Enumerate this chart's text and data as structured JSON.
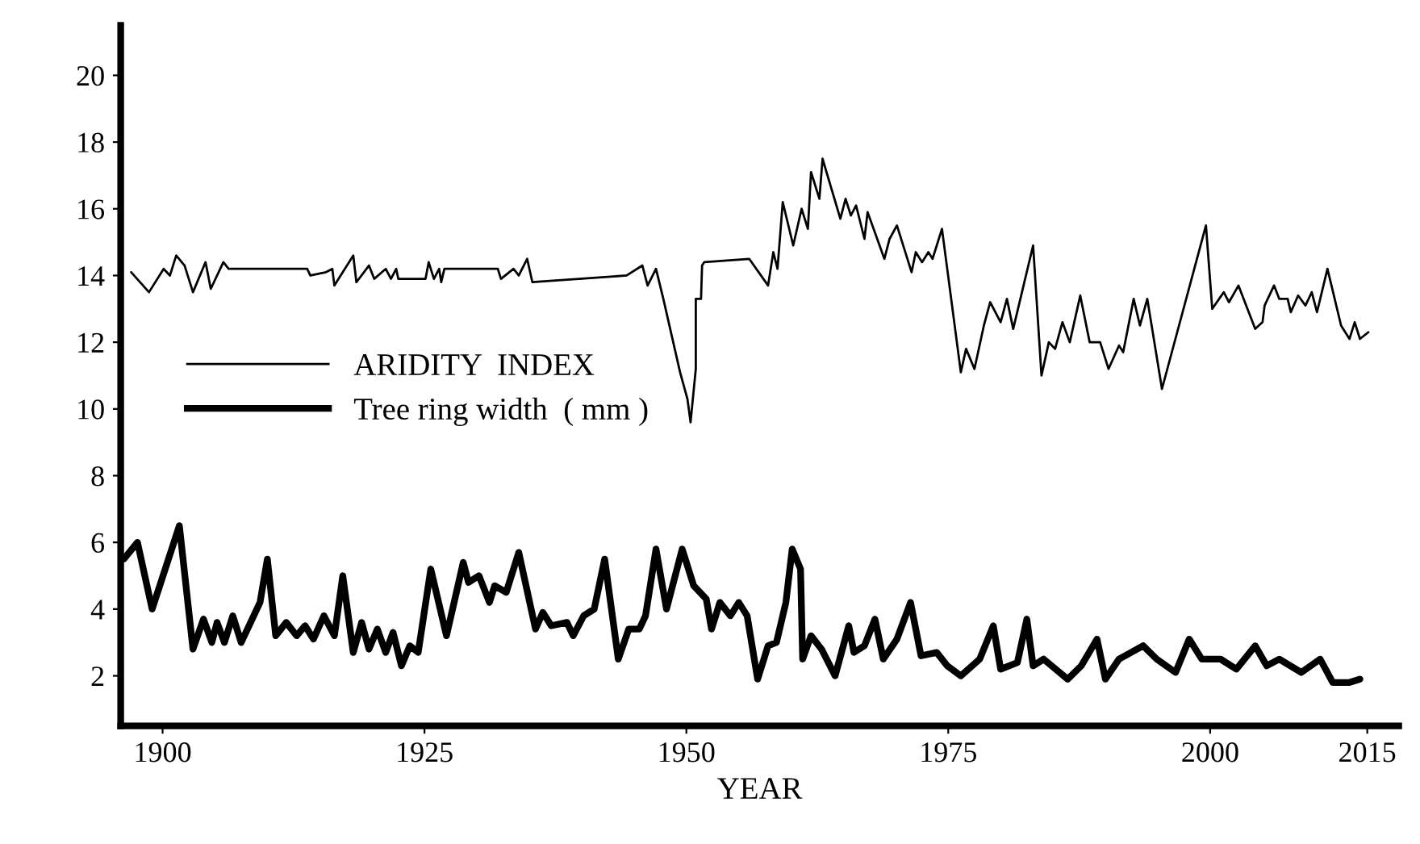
{
  "chart_data": {
    "type": "line",
    "xlabel": "YEAR",
    "xlim": [
      1896,
      2018
    ],
    "xticks": [
      1900,
      1925,
      1950,
      1975,
      2000,
      2015
    ],
    "ylim": [
      0.5,
      21.5
    ],
    "yticks": [
      2,
      4,
      6,
      8,
      10,
      12,
      14,
      16,
      18,
      20
    ],
    "grid": false,
    "legend": "left",
    "marker": "none",
    "line_style": "solid",
    "series": [
      {
        "name": "ARIDITY  INDEX",
        "color": "#000000",
        "x": [
          1897.0,
          1898.7,
          1900.1,
          1900.7,
          1901.3,
          1902.1,
          1902.9,
          1904.1,
          1904.6,
          1905.8,
          1906.3,
          1913.8,
          1914.1,
          1915.6,
          1916.2,
          1916.4,
          1917.2,
          1918.2,
          1918.5,
          1919.7,
          1920.2,
          1921.3,
          1921.8,
          1922.3,
          1922.5,
          1925.1,
          1925.4,
          1925.9,
          1926.4,
          1926.6,
          1926.9,
          1932.0,
          1932.3,
          1933.5,
          1934.0,
          1934.8,
          1935.3,
          1944.3,
          1945.8,
          1946.3,
          1947.1,
          1947.8,
          1949.4,
          1950.1,
          1950.4,
          1950.9,
          1950.9,
          1951.4,
          1951.5,
          1951.7,
          1956.0,
          1957.8,
          1958.3,
          1958.7,
          1959.2,
          1960.2,
          1961.0,
          1961.6,
          1961.9,
          1962.7,
          1963.0,
          1964.7,
          1965.2,
          1965.7,
          1966.2,
          1967.0,
          1967.3,
          1968.9,
          1969.4,
          1970.1,
          1971.5,
          1971.9,
          1972.5,
          1973.1,
          1973.5,
          1974.4,
          1976.2,
          1976.7,
          1977.5,
          1978.4,
          1979.0,
          1980.0,
          1980.6,
          1981.2,
          1983.1,
          1983.9,
          1984.6,
          1985.2,
          1985.9,
          1986.6,
          1987.6,
          1988.5,
          1989.5,
          1990.3,
          1991.3,
          1991.7,
          1992.7,
          1993.3,
          1994.0,
          1995.4,
          1999.6,
          2000.2,
          2001.3,
          2001.8,
          2002.7,
          2004.3,
          2005.0,
          2005.2,
          2006.1,
          2006.6,
          2007.4,
          2007.7,
          2008.4,
          2009.1,
          2009.7,
          2010.2,
          2011.2,
          2012.5,
          2013.3,
          2013.8,
          2014.3,
          2015.1
        ],
        "values": [
          14.1,
          13.5,
          14.2,
          14.0,
          14.6,
          14.3,
          13.5,
          14.4,
          13.6,
          14.4,
          14.2,
          14.2,
          14.0,
          14.1,
          14.2,
          13.7,
          14.1,
          14.6,
          13.8,
          14.3,
          13.9,
          14.2,
          13.9,
          14.2,
          13.9,
          13.9,
          14.4,
          13.9,
          14.2,
          13.8,
          14.2,
          14.2,
          13.9,
          14.2,
          14.0,
          14.5,
          13.8,
          14.0,
          14.3,
          13.7,
          14.2,
          13.3,
          11.1,
          10.3,
          9.6,
          11.2,
          13.3,
          13.3,
          14.3,
          14.4,
          14.5,
          13.7,
          14.7,
          14.2,
          16.2,
          14.9,
          16.0,
          15.4,
          17.1,
          16.3,
          17.5,
          15.7,
          16.3,
          15.8,
          16.1,
          15.1,
          15.9,
          14.5,
          15.1,
          15.5,
          14.1,
          14.7,
          14.4,
          14.7,
          14.5,
          15.4,
          11.1,
          11.8,
          11.2,
          12.5,
          13.2,
          12.6,
          13.3,
          12.4,
          14.9,
          11.0,
          12.0,
          11.8,
          12.6,
          12.0,
          13.4,
          12.0,
          12.0,
          11.2,
          11.9,
          11.7,
          13.3,
          12.5,
          13.3,
          10.6,
          15.5,
          13.0,
          13.5,
          13.2,
          13.7,
          12.4,
          12.6,
          13.1,
          13.7,
          13.3,
          13.3,
          12.9,
          13.4,
          13.1,
          13.5,
          12.9,
          14.2,
          12.5,
          12.1,
          12.6,
          12.1,
          12.3
        ]
      },
      {
        "name": "Tree ring width  ( mm )",
        "color": "#000000",
        "x": [
          1896.3,
          1897.6,
          1899.0,
          1901.6,
          1902.9,
          1903.9,
          1904.7,
          1905.2,
          1905.9,
          1906.7,
          1907.5,
          1909.3,
          1910.0,
          1910.8,
          1911.8,
          1912.8,
          1913.6,
          1914.4,
          1915.4,
          1916.4,
          1917.2,
          1918.2,
          1919.0,
          1919.7,
          1920.5,
          1921.3,
          1922.0,
          1922.8,
          1923.6,
          1924.4,
          1925.6,
          1927.1,
          1928.7,
          1929.2,
          1930.2,
          1931.2,
          1931.7,
          1932.8,
          1934.0,
          1935.6,
          1936.3,
          1937.1,
          1938.6,
          1939.2,
          1940.2,
          1941.2,
          1942.2,
          1943.5,
          1944.5,
          1945.5,
          1946.1,
          1947.1,
          1948.1,
          1949.6,
          1950.7,
          1951.9,
          1952.4,
          1953.2,
          1954.2,
          1955.0,
          1955.8,
          1956.8,
          1957.8,
          1958.6,
          1959.5,
          1960.1,
          1960.9,
          1961.1,
          1961.9,
          1962.9,
          1964.2,
          1965.5,
          1966.0,
          1967.0,
          1968.0,
          1968.8,
          1970.1,
          1971.4,
          1972.4,
          1973.9,
          1974.9,
          1976.2,
          1978.0,
          1979.3,
          1980.0,
          1981.6,
          1982.5,
          1983.1,
          1984.1,
          1986.4,
          1987.7,
          1989.2,
          1990.0,
          1991.3,
          1993.6,
          1994.9,
          1996.7,
          1998.0,
          1999.2,
          2001.0,
          2002.5,
          2004.3,
          2005.4,
          2006.6,
          2008.7,
          2010.5,
          2011.7,
          2013.3,
          2014.3
        ],
        "values": [
          5.5,
          6.0,
          4.0,
          6.5,
          2.8,
          3.7,
          3.0,
          3.6,
          3.0,
          3.8,
          3.0,
          4.2,
          5.5,
          3.2,
          3.6,
          3.2,
          3.5,
          3.1,
          3.8,
          3.2,
          5.0,
          2.7,
          3.6,
          2.8,
          3.4,
          2.7,
          3.3,
          2.3,
          2.9,
          2.7,
          5.2,
          3.2,
          5.4,
          4.8,
          5.0,
          4.2,
          4.7,
          4.5,
          5.7,
          3.4,
          3.9,
          3.5,
          3.6,
          3.2,
          3.8,
          4.0,
          5.5,
          2.5,
          3.4,
          3.4,
          3.8,
          5.8,
          4.0,
          5.8,
          4.7,
          4.3,
          3.4,
          4.2,
          3.8,
          4.2,
          3.8,
          1.9,
          2.9,
          3.0,
          4.2,
          5.8,
          5.2,
          2.5,
          3.2,
          2.8,
          2.0,
          3.5,
          2.7,
          2.9,
          3.7,
          2.5,
          3.1,
          4.2,
          2.6,
          2.7,
          2.3,
          2.0,
          2.5,
          3.5,
          2.2,
          2.4,
          3.7,
          2.3,
          2.5,
          1.9,
          2.3,
          3.1,
          1.9,
          2.5,
          2.9,
          2.5,
          2.1,
          3.1,
          2.5,
          2.5,
          2.2,
          2.9,
          2.3,
          2.5,
          2.1,
          2.5,
          1.8,
          1.8,
          1.9
        ]
      }
    ]
  }
}
